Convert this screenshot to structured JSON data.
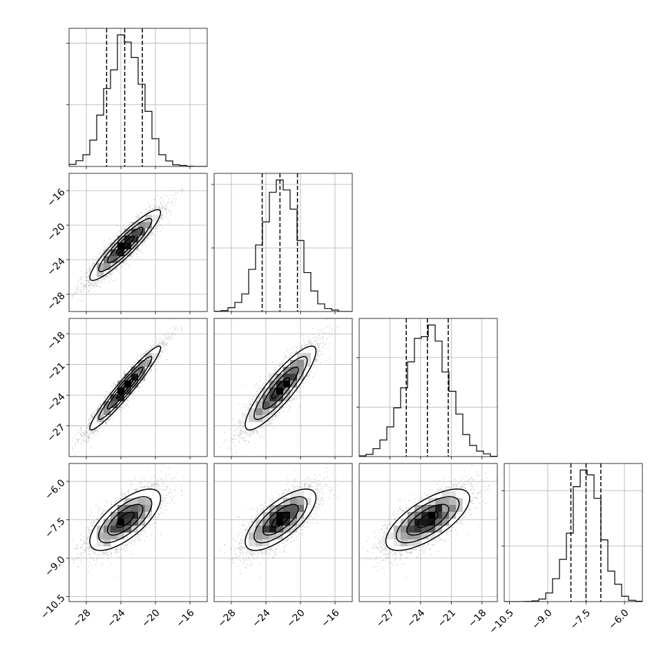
{
  "chart_data": {
    "type": "corner",
    "dimensions": 4,
    "quantiles": [
      0.16,
      0.5,
      0.84
    ],
    "params": [
      {
        "mean": -23.5,
        "std": 2.05,
        "range": [
          -30.0,
          -14.0
        ],
        "ticks": [
          -28,
          -24,
          -20,
          -16
        ],
        "tick_labels": [
          "−28",
          "−24",
          "−20",
          "−16"
        ]
      },
      {
        "mean": -22.3,
        "std": 2.05,
        "range": [
          -30.0,
          -14.0
        ],
        "ticks": [
          -28,
          -24,
          -20,
          -16
        ],
        "tick_labels": [
          "−28",
          "−24",
          "−20",
          "−16"
        ]
      },
      {
        "mean": -23.3,
        "std": 2.05,
        "range": [
          -30.0,
          -16.5
        ],
        "ticks": [
          -27,
          -24,
          -21,
          -18
        ],
        "tick_labels": [
          "−27",
          "−24",
          "−21",
          "−18"
        ]
      },
      {
        "mean": -7.5,
        "std": 0.6,
        "range": [
          -10.7,
          -5.3
        ],
        "ticks": [
          -10.5,
          -9.0,
          -7.5,
          -6.0
        ],
        "tick_labels": [
          "−10.5",
          "−9.0",
          "−7.5",
          "−6.0"
        ]
      }
    ],
    "correlations": [
      [
        1.0,
        0.92,
        0.96,
        0.7
      ],
      [
        0.92,
        1.0,
        0.88,
        0.72
      ],
      [
        0.96,
        0.88,
        1.0,
        0.7
      ],
      [
        0.7,
        0.72,
        0.7,
        1.0
      ]
    ],
    "histogram_bins": 20,
    "contour_levels_sigma": [
      0.5,
      1.0,
      1.5,
      2.0
    ],
    "grid": true,
    "colors": {
      "line": "#000000",
      "samples": "#9a9a9a",
      "grid": "#b0b0b0",
      "density": "#000000"
    }
  }
}
